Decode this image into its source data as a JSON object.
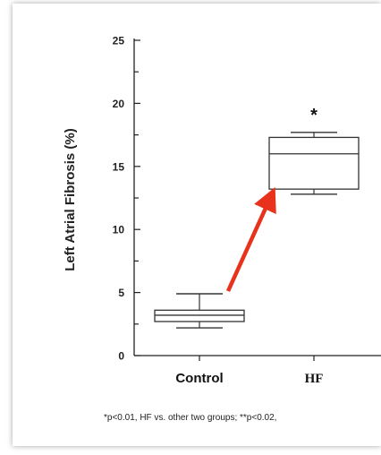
{
  "chart_data": {
    "type": "box",
    "ylabel": "Left Atrial Fibrosis (%)",
    "ylim": [
      0,
      25
    ],
    "yticks": [
      "0",
      "5",
      "10",
      "15",
      "20",
      "25"
    ],
    "categories": [
      "Control",
      "HF"
    ],
    "boxes": [
      {
        "category": "Control",
        "whisker_low": 2.2,
        "q1": 2.7,
        "median": 3.2,
        "q3": 3.6,
        "whisker_high": 4.9,
        "annotation": ""
      },
      {
        "category": "HF",
        "whisker_low": 12.8,
        "q1": 13.2,
        "median": 16.0,
        "q3": 17.3,
        "whisker_high": 17.7,
        "annotation": "*"
      }
    ],
    "arrow": {
      "from": "Control",
      "to": "HF",
      "color": "#e8321c"
    },
    "footnote": "*p<0.01,  HF  vs.  other two groups; **p<0.02,"
  }
}
